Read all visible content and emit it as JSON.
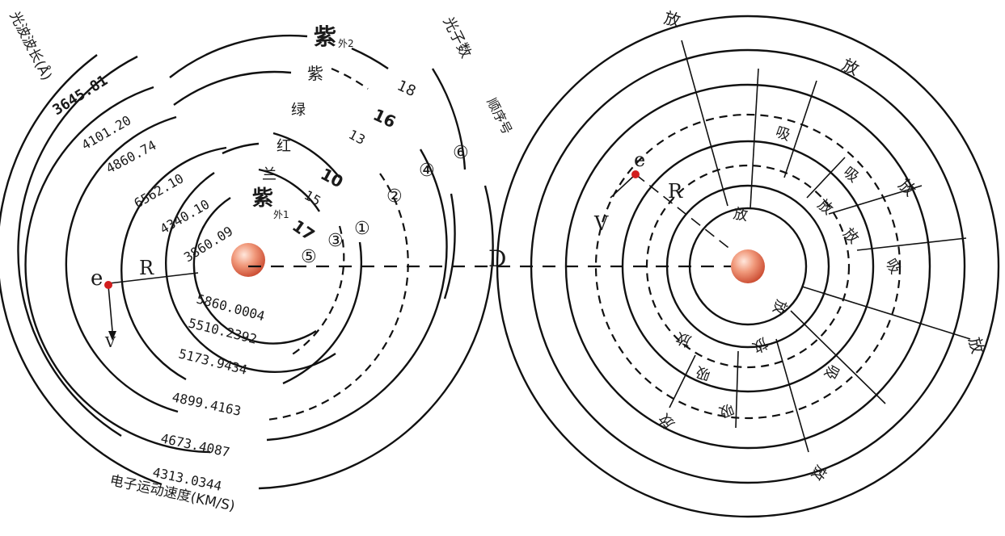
{
  "left": {
    "titles": {
      "wavelength": "光波波长(Å)",
      "photon_count": "光子数",
      "sequence": "顺序号",
      "speed": "电子运动速度(KM/S)"
    },
    "wavelengths": [
      "3645.81",
      "4101.20",
      "4860.74",
      "6562.10",
      "4340.10",
      "3860.09"
    ],
    "colors": [
      "紫",
      "紫",
      "绿",
      "红",
      "兰",
      "紫"
    ],
    "color_subscripts": [
      "外2",
      "外1"
    ],
    "photons": [
      "18",
      "16",
      "13",
      "10",
      "15",
      "17"
    ],
    "orders": [
      "⑥",
      "④",
      "②",
      "①",
      "③",
      "⑤"
    ],
    "speeds": [
      "5860.0004",
      "5510.2392",
      "5173.9434",
      "4899.4163",
      "4673.4087",
      "4313.0344"
    ],
    "labels": {
      "electron": "e",
      "radius": "R",
      "velocity": "V"
    }
  },
  "center": {
    "distance": "D"
  },
  "right": {
    "labels": {
      "electron": "e",
      "radius": "R",
      "velocity": "V"
    },
    "emit": "放",
    "absorb": "吸"
  }
}
